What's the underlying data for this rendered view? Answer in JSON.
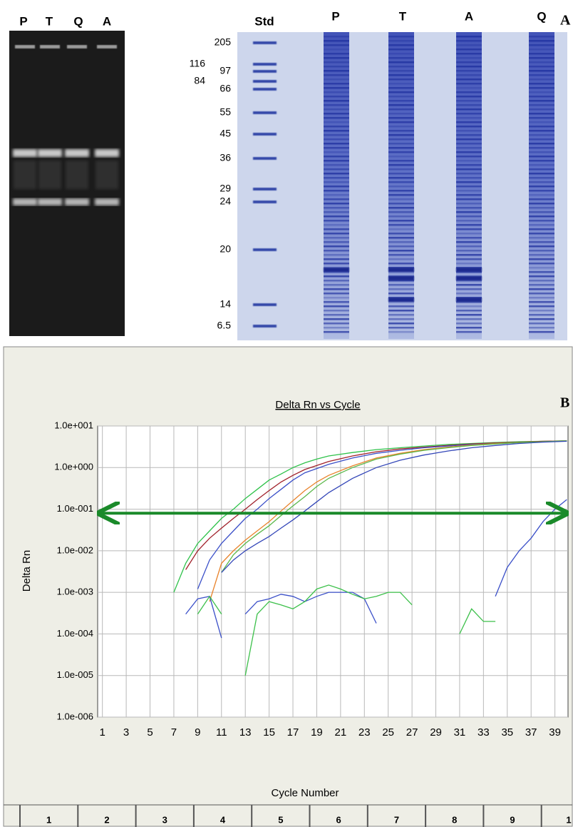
{
  "panel_a": {
    "label": "A",
    "agarose_lanes": [
      "P",
      "T",
      "Q",
      "A"
    ],
    "sds_lanes": [
      "Std",
      "P",
      "T",
      "A",
      "Q"
    ],
    "markers": [
      "205",
      "116",
      "97",
      "84",
      "66",
      "55",
      "45",
      "36",
      "29",
      "24",
      "20",
      "14",
      "6.5"
    ]
  },
  "chart_data": {
    "type": "line",
    "panel_label": "B",
    "title": "Delta Rn vs Cycle",
    "x_label": "Cycle Number",
    "y_label": "Delta Rn",
    "log_y": true,
    "grid": true,
    "xlim": [
      0.6,
      40.1
    ],
    "xticks": [
      1,
      3,
      5,
      7,
      9,
      11,
      13,
      15,
      17,
      19,
      21,
      23,
      25,
      27,
      29,
      31,
      33,
      35,
      37,
      39
    ],
    "ylim": [
      1e-06,
      10
    ],
    "yticks": [
      {
        "value": 10,
        "label": "1.0e+001"
      },
      {
        "value": 1,
        "label": "1.0e+000"
      },
      {
        "value": 0.1,
        "label": "1.0e-001"
      },
      {
        "value": 0.01,
        "label": "1.0e-002"
      },
      {
        "value": 0.001,
        "label": "1.0e-003"
      },
      {
        "value": 0.0001,
        "label": "1.0e-004"
      },
      {
        "value": 1e-05,
        "label": "1.0e-005"
      },
      {
        "value": 1e-06,
        "label": "1.0e-006"
      }
    ],
    "threshold": 0.08,
    "threshold_color": "#1a8a2a",
    "series": [
      {
        "color": "#2ec24a",
        "x": [
          7,
          8,
          9,
          10,
          11,
          12,
          13,
          14,
          15,
          16,
          17,
          18,
          19,
          20,
          22,
          24,
          26,
          28,
          30,
          32,
          34,
          36,
          38,
          40
        ],
        "values": [
          0.001,
          0.005,
          0.015,
          0.03,
          0.06,
          0.1,
          0.18,
          0.3,
          0.5,
          0.7,
          1.0,
          1.3,
          1.6,
          1.9,
          2.3,
          2.7,
          3.0,
          3.3,
          3.6,
          3.8,
          4.0,
          4.2,
          4.3,
          4.4
        ]
      },
      {
        "color": "#a0202a",
        "x": [
          8,
          9,
          10,
          11,
          12,
          13,
          14,
          15,
          16,
          17,
          18,
          20,
          22,
          24,
          26,
          28,
          30,
          32,
          34,
          36,
          38,
          40
        ],
        "values": [
          0.0035,
          0.01,
          0.02,
          0.035,
          0.06,
          0.1,
          0.17,
          0.28,
          0.45,
          0.65,
          0.9,
          1.4,
          1.9,
          2.4,
          2.8,
          3.1,
          3.4,
          3.7,
          3.9,
          4.1,
          4.3,
          4.4
        ]
      },
      {
        "color": "#3a4fc8",
        "x": [
          9,
          10,
          11,
          12,
          13,
          14,
          15,
          16,
          17,
          18,
          20,
          22,
          24,
          26,
          28,
          30,
          32,
          34,
          36,
          38,
          40
        ],
        "values": [
          0.0012,
          0.006,
          0.015,
          0.03,
          0.06,
          0.1,
          0.18,
          0.3,
          0.5,
          0.75,
          1.2,
          1.7,
          2.2,
          2.6,
          3.0,
          3.3,
          3.6,
          3.8,
          4.0,
          4.2,
          4.4
        ]
      },
      {
        "color": "#e8822a",
        "x": [
          10,
          11,
          12,
          13,
          14,
          15,
          16,
          17,
          18,
          19,
          20,
          22,
          24,
          26,
          28,
          30,
          32,
          34,
          36,
          38,
          40
        ],
        "values": [
          0.0006,
          0.005,
          0.01,
          0.018,
          0.03,
          0.05,
          0.09,
          0.16,
          0.28,
          0.45,
          0.65,
          1.1,
          1.7,
          2.2,
          2.7,
          3.1,
          3.5,
          3.8,
          4.0,
          4.2,
          4.4
        ]
      },
      {
        "color": "#5ab84a",
        "x": [
          11,
          12,
          13,
          14,
          15,
          16,
          17,
          18,
          19,
          20,
          22,
          24,
          26,
          28,
          30,
          32,
          34,
          36,
          38,
          40
        ],
        "values": [
          0.003,
          0.008,
          0.015,
          0.025,
          0.04,
          0.07,
          0.12,
          0.2,
          0.35,
          0.55,
          1.0,
          1.6,
          2.1,
          2.6,
          3.0,
          3.4,
          3.7,
          4.0,
          4.2,
          4.4
        ]
      },
      {
        "color": "#3346b8",
        "x": [
          11,
          12,
          13,
          14,
          15,
          16,
          17,
          18,
          19,
          20,
          22,
          24,
          26,
          28,
          30,
          32,
          34,
          36,
          38,
          40
        ],
        "values": [
          0.003,
          0.006,
          0.01,
          0.015,
          0.022,
          0.035,
          0.055,
          0.09,
          0.15,
          0.25,
          0.55,
          1.0,
          1.5,
          2.0,
          2.5,
          3.0,
          3.4,
          3.8,
          4.1,
          4.3
        ]
      },
      {
        "color": "#3a4fc8",
        "x": [
          8,
          9,
          10,
          11,
          12,
          13,
          14,
          15,
          16,
          17,
          18,
          19,
          20,
          22,
          23,
          24,
          29,
          34,
          35,
          36,
          37,
          38,
          39,
          40
        ],
        "values": [
          0.0003,
          0.0007,
          0.0008,
          8e-05,
          null,
          0.0003,
          0.0006,
          0.0007,
          0.0009,
          0.0008,
          0.0006,
          0.0008,
          0.001,
          0.001,
          0.0007,
          0.00018,
          null,
          0.0008,
          0.004,
          0.01,
          0.02,
          0.05,
          0.1,
          0.17
        ]
      },
      {
        "color": "#3cc04a",
        "x": [
          9,
          10,
          11,
          12,
          13,
          14,
          15,
          16,
          17,
          18,
          19,
          20,
          21,
          22,
          23,
          24,
          25,
          26,
          27,
          29,
          31,
          32,
          33,
          34
        ],
        "values": [
          0.0003,
          0.0008,
          0.0003,
          null,
          1e-05,
          0.0003,
          0.0006,
          0.0005,
          0.0004,
          0.0006,
          0.0012,
          0.0015,
          0.0012,
          0.0009,
          0.0007,
          0.0008,
          0.001,
          0.001,
          0.0005,
          null,
          0.0001,
          0.0004,
          0.0002,
          0.0002
        ]
      }
    ],
    "plate_row": [
      "1",
      "2",
      "3",
      "4",
      "5",
      "6",
      "7",
      "8",
      "9",
      "1"
    ]
  }
}
